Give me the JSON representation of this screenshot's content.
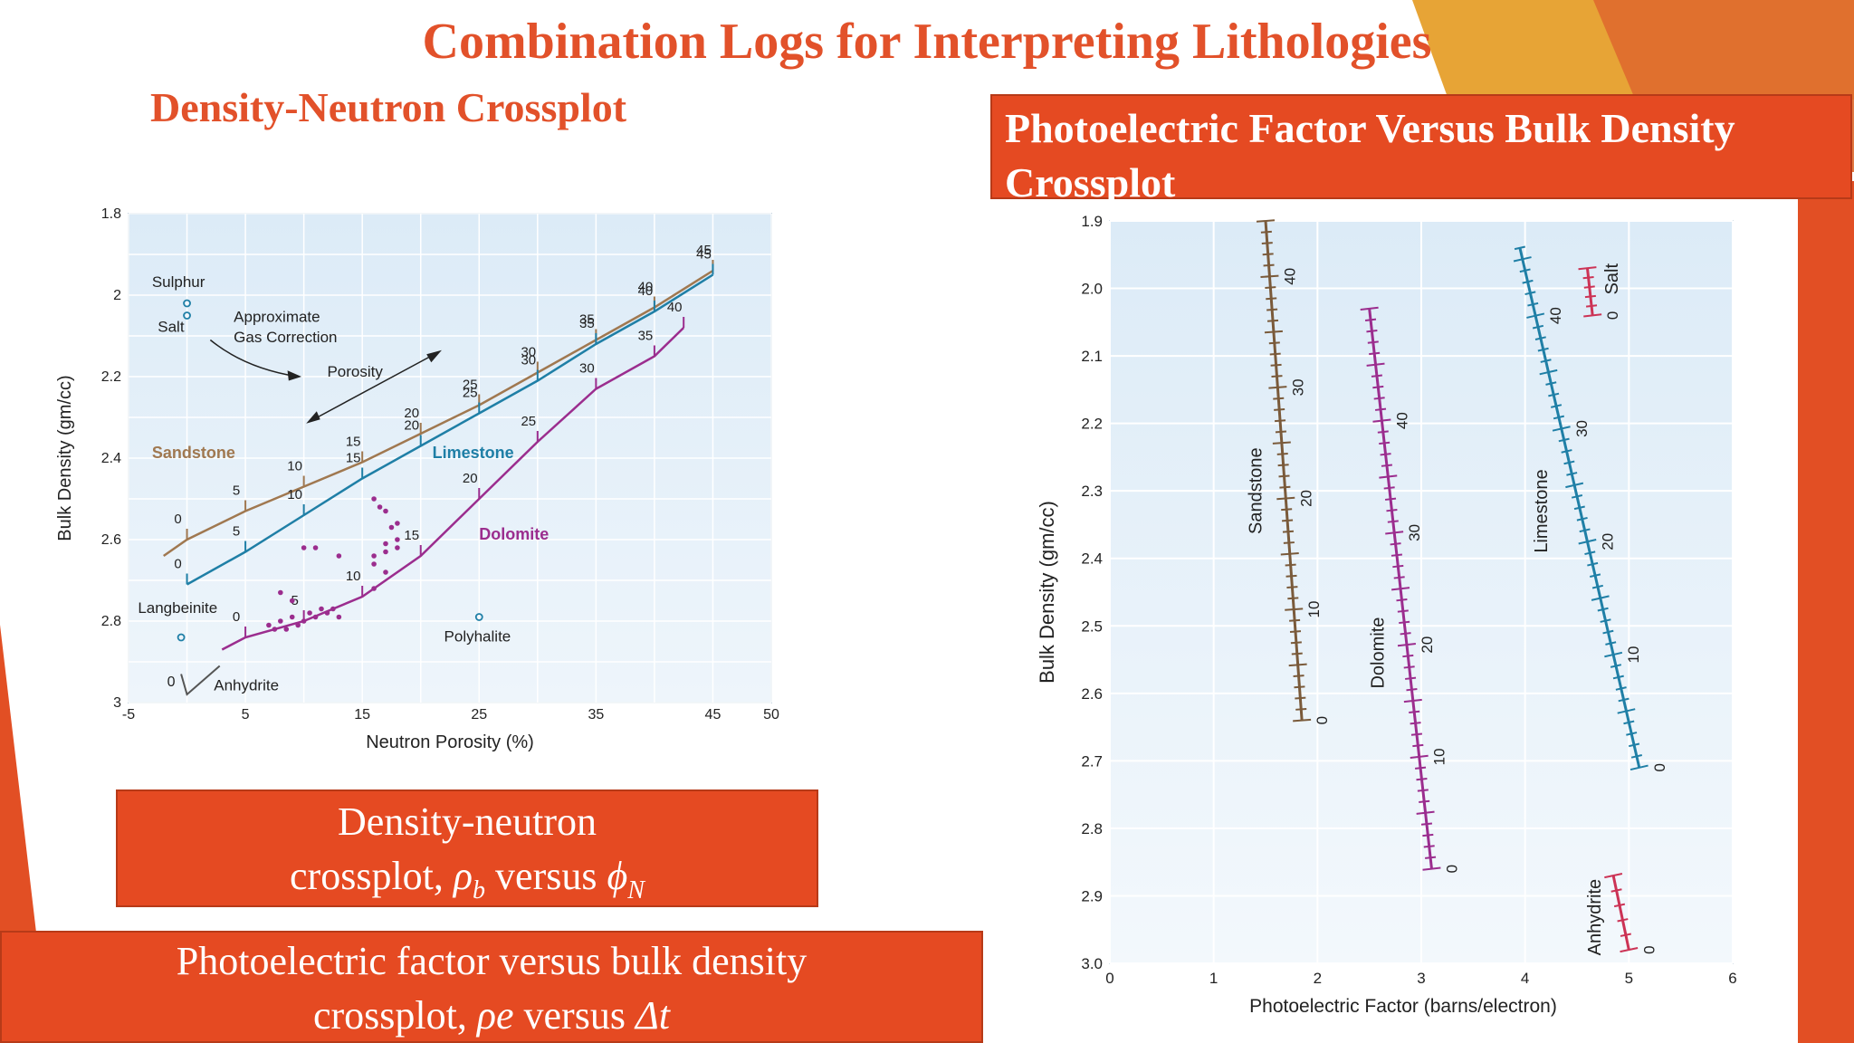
{
  "slide": {
    "title": "Combination Logs for Interpreting Lithologies",
    "left_subtitle": "Density-Neutron Crossplot",
    "right_title": "Photoelectric Factor Versus Bulk Density Crossplot",
    "caption1_line1": "Density-neutron",
    "caption1_line2_prefix": "crossplot, ",
    "caption1_rho": "ρ",
    "caption1_rho_sub": "b",
    "caption1_versus": " versus ",
    "caption1_phi": "ϕ",
    "caption1_phi_sub": "N",
    "caption2_line1": "Photoelectric factor versus bulk density",
    "caption2_line2_prefix": "crossplot, ",
    "caption2_rho_e": "ρe",
    "caption2_versus": " versus ",
    "caption2_delta_t": "Δt",
    "accent_color": "#e54a22",
    "title_color": "#e2512a"
  },
  "chart_data": [
    {
      "type": "line",
      "xlabel": "Neutron Porosity (%)",
      "ylabel": "Bulk Density (gm/cc)",
      "xlim": [
        -5,
        50
      ],
      "ylim": [
        3,
        1.8
      ],
      "x_ticks": [
        -5,
        5,
        15,
        25,
        35,
        45,
        50
      ],
      "y_ticks": [
        1.8,
        2,
        2.2,
        2.4,
        2.6,
        2.8,
        3
      ],
      "grid": true,
      "series": [
        {
          "name": "Sandstone",
          "color": "#a07850",
          "points": [
            [
              -2,
              2.64
            ],
            [
              0,
              2.6
            ],
            [
              5,
              2.53
            ],
            [
              10,
              2.47
            ],
            [
              15,
              2.41
            ],
            [
              20,
              2.34
            ],
            [
              25,
              2.27
            ],
            [
              30,
              2.19
            ],
            [
              35,
              2.11
            ],
            [
              40,
              2.03
            ],
            [
              45,
              1.94
            ]
          ],
          "labels": [
            "0",
            "5",
            "10",
            "15",
            "20",
            "25",
            "30",
            "35",
            "40",
            "45"
          ]
        },
        {
          "name": "Limestone",
          "color": "#1f7fa6",
          "points": [
            [
              0,
              2.71
            ],
            [
              5,
              2.63
            ],
            [
              10,
              2.54
            ],
            [
              15,
              2.45
            ],
            [
              20,
              2.37
            ],
            [
              25,
              2.29
            ],
            [
              30,
              2.21
            ],
            [
              35,
              2.12
            ],
            [
              40,
              2.04
            ],
            [
              45,
              1.95
            ]
          ],
          "labels": [
            "0",
            "5",
            "10",
            "15",
            "20",
            "25",
            "30",
            "35",
            "40",
            "45"
          ]
        },
        {
          "name": "Dolomite",
          "color": "#9b2d8e",
          "points": [
            [
              3,
              2.87
            ],
            [
              5,
              2.84
            ],
            [
              10,
              2.8
            ],
            [
              15,
              2.74
            ],
            [
              20,
              2.64
            ],
            [
              25,
              2.5
            ],
            [
              30,
              2.36
            ],
            [
              35,
              2.23
            ],
            [
              40,
              2.15
            ],
            [
              42.5,
              2.08
            ]
          ],
          "labels": [
            "0",
            "5",
            "10",
            "15",
            "20",
            "25",
            "30",
            "35",
            "40"
          ]
        }
      ],
      "points": [
        {
          "label": "Sulphur",
          "x": 0,
          "y": 2.02
        },
        {
          "label": "Salt",
          "x": 0,
          "y": 2.05
        },
        {
          "label": "Langbeinite",
          "x": -0.5,
          "y": 2.84
        },
        {
          "label": "Polyhalite",
          "x": 25,
          "y": 2.79
        }
      ],
      "annotations": [
        "Approximate",
        "Gas Correction",
        "Porosity",
        "Anhydrite"
      ],
      "anhydrite_label": "0",
      "scatter_points": [
        [
          8,
          2.8
        ],
        [
          8.5,
          2.82
        ],
        [
          9,
          2.79
        ],
        [
          9.5,
          2.81
        ],
        [
          10,
          2.8
        ],
        [
          10.5,
          2.78
        ],
        [
          11,
          2.79
        ],
        [
          11.5,
          2.77
        ],
        [
          12,
          2.78
        ],
        [
          12.5,
          2.77
        ],
        [
          13,
          2.79
        ],
        [
          7.5,
          2.82
        ],
        [
          7,
          2.81
        ],
        [
          9,
          2.75
        ],
        [
          8,
          2.73
        ],
        [
          10,
          2.62
        ],
        [
          11,
          2.62
        ],
        [
          13,
          2.64
        ],
        [
          16,
          2.64
        ],
        [
          17,
          2.63
        ],
        [
          18,
          2.62
        ],
        [
          16,
          2.5
        ],
        [
          16.5,
          2.52
        ],
        [
          17,
          2.53
        ],
        [
          17.5,
          2.57
        ],
        [
          18,
          2.56
        ],
        [
          17,
          2.61
        ],
        [
          16,
          2.66
        ],
        [
          17,
          2.68
        ],
        [
          16,
          2.72
        ],
        [
          18,
          2.6
        ]
      ],
      "point_color": "#1f7fa6",
      "scatter_color": "#9b2d8e"
    },
    {
      "type": "line",
      "xlabel": "Photoelectric Factor (barns/electron)",
      "ylabel": "Bulk Density (gm/cc)",
      "xlim": [
        0,
        6
      ],
      "ylim": [
        3.0,
        1.9
      ],
      "x_ticks": [
        0,
        1,
        2,
        3,
        4,
        5,
        6
      ],
      "y_ticks": [
        1.9,
        2.0,
        2.1,
        2.2,
        2.3,
        2.4,
        2.5,
        2.6,
        2.7,
        2.8,
        2.9,
        3.0
      ],
      "grid": true,
      "series": [
        {
          "name": "Sandstone",
          "color": "#7a5a3a",
          "start": [
            1.5,
            1.9
          ],
          "end": [
            1.85,
            2.64
          ],
          "porosity_range": [
            45,
            0
          ],
          "labels": [
            "40",
            "30",
            "20",
            "10",
            "0"
          ]
        },
        {
          "name": "Dolomite",
          "color": "#9b2d8e",
          "start": [
            2.5,
            2.03
          ],
          "end": [
            3.1,
            2.86
          ],
          "porosity_range": [
            50,
            0
          ],
          "labels": [
            "40",
            "30",
            "20",
            "10",
            "0"
          ]
        },
        {
          "name": "Limestone",
          "color": "#1f7fa6",
          "start": [
            3.95,
            1.94
          ],
          "end": [
            5.1,
            2.71
          ],
          "porosity_range": [
            46,
            0
          ],
          "labels": [
            "40",
            "30",
            "20",
            "10",
            "0"
          ]
        },
        {
          "name": "Salt",
          "color": "#cc3355",
          "start": [
            4.6,
            1.97
          ],
          "end": [
            4.65,
            2.04
          ],
          "porosity_range": [
            5,
            0
          ],
          "labels": [
            "0"
          ]
        },
        {
          "name": "Anhydrite",
          "color": "#cc3355",
          "start": [
            4.85,
            2.87
          ],
          "end": [
            5.0,
            2.98
          ],
          "porosity_range": [
            5,
            0
          ],
          "labels": [
            "0"
          ]
        }
      ]
    }
  ]
}
